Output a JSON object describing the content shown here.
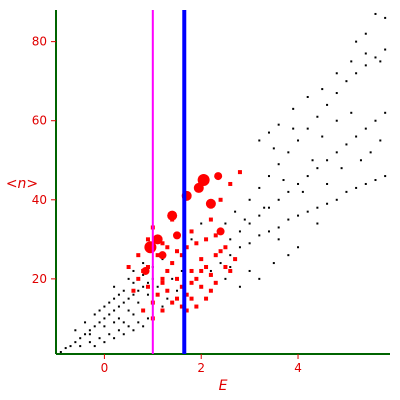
{
  "chart_data": {
    "type": "scatter",
    "title": "",
    "xlabel": "E",
    "ylabel": "<n>",
    "xlim": [
      -1,
      5.9
    ],
    "ylim": [
      1,
      88
    ],
    "x_ticks": [
      0,
      2,
      4
    ],
    "y_ticks": [
      20,
      40,
      60,
      80
    ],
    "grid": false,
    "axis_color": "#006400",
    "tick_color": "#e00000",
    "vertical_lines": [
      {
        "x": 1.0,
        "color": "#ff00ff"
      },
      {
        "x": 1.65,
        "color": "#0000ff"
      }
    ],
    "series": [
      {
        "color": "#000000",
        "marker": "dot",
        "points": [
          [
            -0.9,
            1.5
          ],
          [
            -0.8,
            2.5
          ],
          [
            -0.7,
            3
          ],
          [
            -0.6,
            4
          ],
          [
            -0.5,
            5
          ],
          [
            -0.4,
            6
          ],
          [
            -0.3,
            7
          ],
          [
            -0.2,
            8
          ],
          [
            -0.1,
            9
          ],
          [
            0.0,
            10
          ],
          [
            0.1,
            11
          ],
          [
            0.2,
            12
          ],
          [
            0.3,
            13
          ],
          [
            0.4,
            14
          ],
          [
            0.5,
            15
          ],
          [
            0.6,
            16
          ],
          [
            0.7,
            17
          ],
          [
            0.8,
            18
          ],
          [
            0.9,
            19
          ],
          [
            1.0,
            20
          ],
          [
            -0.6,
            7
          ],
          [
            -0.4,
            9
          ],
          [
            -0.2,
            11
          ],
          [
            0.0,
            13
          ],
          [
            0.2,
            15
          ],
          [
            0.4,
            17
          ],
          [
            0.6,
            19
          ],
          [
            0.8,
            21
          ],
          [
            1.0,
            23
          ],
          [
            1.2,
            25
          ],
          [
            -0.5,
            3
          ],
          [
            -0.3,
            4
          ],
          [
            -0.1,
            5
          ],
          [
            0.1,
            6
          ],
          [
            0.3,
            7
          ],
          [
            0.5,
            8
          ],
          [
            0.7,
            9
          ],
          [
            0.9,
            10
          ],
          [
            -0.2,
            3
          ],
          [
            0.0,
            4
          ],
          [
            0.2,
            5
          ],
          [
            0.4,
            6
          ],
          [
            0.6,
            7
          ],
          [
            0.8,
            8
          ],
          [
            0.4,
            9
          ],
          [
            0.2,
            9
          ],
          [
            0.0,
            8
          ],
          [
            -0.3,
            6
          ],
          [
            0.6,
            11
          ],
          [
            0.8,
            12
          ],
          [
            2.4,
            24
          ],
          [
            2.6,
            26
          ],
          [
            2.8,
            28
          ],
          [
            3.0,
            29
          ],
          [
            3.2,
            31
          ],
          [
            3.4,
            32
          ],
          [
            3.6,
            33
          ],
          [
            3.8,
            35
          ],
          [
            4.0,
            36
          ],
          [
            4.2,
            37
          ],
          [
            4.4,
            38
          ],
          [
            4.6,
            39
          ],
          [
            4.8,
            40
          ],
          [
            5.0,
            42
          ],
          [
            5.2,
            43
          ],
          [
            5.4,
            44
          ],
          [
            5.6,
            45
          ],
          [
            5.8,
            46
          ],
          [
            2.6,
            30
          ],
          [
            2.8,
            32
          ],
          [
            3.0,
            34
          ],
          [
            3.2,
            36
          ],
          [
            3.4,
            38
          ],
          [
            3.6,
            40
          ],
          [
            3.8,
            42
          ],
          [
            4.0,
            44
          ],
          [
            4.2,
            46
          ],
          [
            4.4,
            48
          ],
          [
            4.6,
            50
          ],
          [
            4.8,
            52
          ],
          [
            5.0,
            54
          ],
          [
            5.2,
            56
          ],
          [
            5.4,
            58
          ],
          [
            5.6,
            60
          ],
          [
            5.8,
            62
          ],
          [
            2.4,
            32
          ],
          [
            2.5,
            34
          ],
          [
            2.7,
            37
          ],
          [
            3.0,
            40
          ],
          [
            3.2,
            43
          ],
          [
            3.4,
            46
          ],
          [
            3.6,
            49
          ],
          [
            3.8,
            52
          ],
          [
            4.0,
            55
          ],
          [
            4.2,
            58
          ],
          [
            4.4,
            61
          ],
          [
            4.6,
            64
          ],
          [
            4.8,
            67
          ],
          [
            5.0,
            70
          ],
          [
            5.2,
            72
          ],
          [
            5.4,
            74
          ],
          [
            5.6,
            76
          ],
          [
            5.8,
            78
          ],
          [
            3.2,
            55
          ],
          [
            3.4,
            57
          ],
          [
            3.6,
            59
          ],
          [
            3.9,
            63
          ],
          [
            4.2,
            66
          ],
          [
            4.5,
            68
          ],
          [
            4.8,
            72
          ],
          [
            5.1,
            75
          ],
          [
            5.4,
            77
          ],
          [
            5.7,
            75
          ],
          [
            2.2,
            22
          ],
          [
            2.5,
            20
          ],
          [
            2.8,
            18
          ],
          [
            3.0,
            22
          ],
          [
            3.2,
            20
          ],
          [
            3.5,
            24
          ],
          [
            3.8,
            26
          ],
          [
            4.0,
            28
          ],
          [
            3.6,
            30
          ],
          [
            4.4,
            34
          ],
          [
            4.6,
            44
          ],
          [
            4.9,
            48
          ],
          [
            5.3,
            50
          ],
          [
            5.5,
            52
          ],
          [
            5.7,
            55
          ],
          [
            4.3,
            50
          ],
          [
            3.7,
            45
          ],
          [
            3.3,
            38
          ],
          [
            2.9,
            35
          ],
          [
            2.6,
            23
          ],
          [
            5.6,
            87
          ],
          [
            5.8,
            86
          ],
          [
            5.2,
            80
          ],
          [
            5.4,
            82
          ],
          [
            4.8,
            60
          ],
          [
            5.1,
            62
          ],
          [
            4.1,
            42
          ],
          [
            4.5,
            56
          ],
          [
            3.9,
            58
          ],
          [
            3.5,
            53
          ],
          [
            0.7,
            14
          ],
          [
            0.9,
            16
          ],
          [
            1.1,
            18
          ],
          [
            1.3,
            15
          ],
          [
            1.5,
            17
          ],
          [
            0.5,
            12
          ],
          [
            0.3,
            10
          ],
          [
            1.2,
            13
          ],
          [
            1.4,
            20
          ],
          [
            1.6,
            22
          ],
          [
            0.2,
            18
          ],
          [
            0.5,
            20
          ],
          [
            0.3,
            16
          ],
          [
            0.8,
            24
          ],
          [
            0.1,
            14
          ],
          [
            -0.1,
            12
          ],
          [
            0.6,
            22
          ],
          [
            1.4,
            24
          ],
          [
            1.8,
            30
          ],
          [
            2.0,
            34
          ]
        ]
      },
      {
        "color": "#ff0000",
        "marker": "square",
        "points": [
          [
            0.6,
            17
          ],
          [
            0.7,
            20
          ],
          [
            0.8,
            22
          ],
          [
            0.9,
            23
          ],
          [
            0.9,
            18
          ],
          [
            1.0,
            14
          ],
          [
            1.1,
            16
          ],
          [
            1.2,
            19
          ],
          [
            1.3,
            22
          ],
          [
            1.4,
            24
          ],
          [
            1.5,
            20
          ],
          [
            1.6,
            18
          ],
          [
            1.7,
            16
          ],
          [
            1.8,
            22
          ],
          [
            1.9,
            20
          ],
          [
            2.0,
            25
          ],
          [
            2.1,
            23
          ],
          [
            2.2,
            21
          ],
          [
            2.3,
            26
          ],
          [
            2.4,
            27
          ],
          [
            2.5,
            28
          ],
          [
            2.6,
            22
          ],
          [
            0.8,
            12
          ],
          [
            1.0,
            10
          ],
          [
            1.2,
            12
          ],
          [
            1.4,
            14
          ],
          [
            1.6,
            13
          ],
          [
            1.8,
            15
          ],
          [
            2.0,
            18
          ],
          [
            2.2,
            17
          ],
          [
            1.1,
            26
          ],
          [
            1.3,
            28
          ],
          [
            1.5,
            27
          ],
          [
            1.7,
            28
          ],
          [
            1.9,
            29
          ],
          [
            2.1,
            30
          ],
          [
            0.5,
            23
          ],
          [
            0.7,
            26
          ],
          [
            1.2,
            29
          ],
          [
            1.6,
            26
          ],
          [
            1.3,
            17
          ],
          [
            1.5,
            15
          ],
          [
            1.7,
            12
          ],
          [
            1.9,
            13
          ],
          [
            2.1,
            15
          ],
          [
            2.3,
            19
          ],
          [
            2.5,
            23
          ],
          [
            2.7,
            25
          ],
          [
            2.2,
            35
          ],
          [
            2.4,
            40
          ],
          [
            2.6,
            44
          ],
          [
            2.8,
            47
          ],
          [
            2.3,
            31
          ],
          [
            1.8,
            32
          ],
          [
            1.4,
            35
          ],
          [
            1.0,
            33
          ],
          [
            0.9,
            30
          ],
          [
            1.2,
            20
          ],
          [
            1.8,
            19
          ],
          [
            2.0,
            22
          ]
        ]
      },
      {
        "color": "#ff0000",
        "marker": "circle",
        "points": [
          [
            0.95,
            28
          ],
          [
            1.1,
            30
          ],
          [
            1.4,
            36
          ],
          [
            1.5,
            31
          ],
          [
            1.7,
            41
          ],
          [
            1.95,
            43
          ],
          [
            2.05,
            45
          ],
          [
            2.2,
            39
          ],
          [
            2.35,
            46
          ],
          [
            2.4,
            32
          ],
          [
            1.2,
            26
          ],
          [
            0.85,
            22
          ]
        ],
        "sizes": [
          6,
          5,
          5,
          4,
          5,
          5,
          6,
          5,
          4,
          4,
          4,
          4
        ]
      }
    ]
  }
}
